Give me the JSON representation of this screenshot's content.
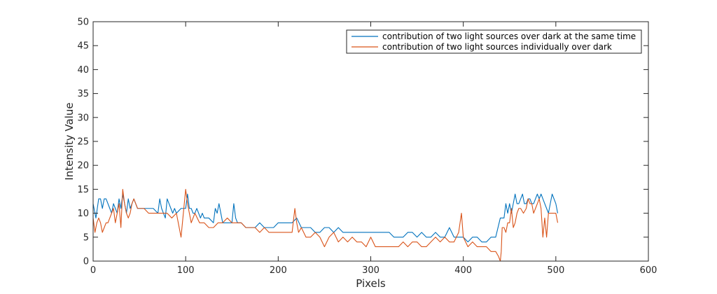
{
  "chart_data": {
    "type": "line",
    "title": "",
    "xlabel": "Pixels",
    "ylabel": "Intensity Value",
    "xlim": [
      0,
      600
    ],
    "ylim": [
      0,
      50
    ],
    "xticks": [
      0,
      100,
      200,
      300,
      400,
      500,
      600
    ],
    "yticks": [
      0,
      5,
      10,
      15,
      20,
      25,
      30,
      35,
      40,
      45,
      50
    ],
    "grid": false,
    "legend_position": "top-right",
    "series": [
      {
        "name": "contribution of two light sources over dark at the same time",
        "color": "#0072BD",
        "x": [
          0,
          3,
          6,
          8,
          10,
          12,
          14,
          16,
          18,
          20,
          22,
          24,
          26,
          28,
          30,
          32,
          34,
          36,
          38,
          40,
          42,
          44,
          46,
          48,
          50,
          55,
          60,
          65,
          70,
          72,
          74,
          76,
          78,
          80,
          82,
          84,
          86,
          88,
          90,
          95,
          100,
          102,
          104,
          106,
          108,
          110,
          112,
          114,
          116,
          118,
          120,
          125,
          130,
          132,
          134,
          136,
          138,
          140,
          145,
          150,
          152,
          154,
          156,
          158,
          160,
          165,
          170,
          175,
          180,
          185,
          190,
          195,
          200,
          205,
          210,
          215,
          220,
          225,
          230,
          235,
          240,
          245,
          250,
          255,
          260,
          265,
          270,
          275,
          280,
          285,
          290,
          295,
          300,
          305,
          310,
          315,
          320,
          325,
          330,
          335,
          340,
          345,
          350,
          355,
          360,
          365,
          370,
          375,
          380,
          385,
          390,
          395,
          400,
          405,
          410,
          415,
          420,
          425,
          430,
          435,
          440,
          442,
          444,
          446,
          448,
          450,
          452,
          454,
          456,
          458,
          460,
          462,
          464,
          466,
          468,
          470,
          472,
          474,
          476,
          478,
          480,
          482,
          484,
          486,
          488,
          490,
          492,
          494,
          496,
          498,
          500,
          502
        ],
        "y": [
          12,
          9,
          13,
          13,
          11,
          13,
          13,
          12,
          11,
          10,
          12,
          11,
          10,
          13,
          11,
          14,
          12,
          10,
          13,
          11,
          12,
          13,
          12,
          11,
          11,
          11,
          11,
          11,
          10,
          13,
          11,
          10,
          9,
          13,
          12,
          11,
          10,
          11,
          10,
          11,
          11,
          14,
          11,
          11,
          10,
          10,
          11,
          10,
          9,
          10,
          9,
          9,
          8,
          11,
          10,
          12,
          10,
          8,
          8,
          8,
          12,
          9,
          8,
          8,
          8,
          7,
          7,
          7,
          8,
          7,
          7,
          7,
          8,
          8,
          8,
          8,
          9,
          7,
          7,
          7,
          6,
          6,
          7,
          7,
          6,
          7,
          6,
          6,
          6,
          6,
          6,
          6,
          6,
          6,
          6,
          6,
          6,
          5,
          5,
          5,
          6,
          6,
          5,
          6,
          5,
          5,
          6,
          5,
          5,
          7,
          5,
          5,
          5,
          4,
          5,
          5,
          4,
          4,
          5,
          5,
          9,
          9,
          9,
          12,
          10,
          12,
          10,
          12,
          14,
          12,
          12,
          13,
          14,
          12,
          12,
          13,
          13,
          12,
          12,
          13,
          14,
          13,
          14,
          13,
          12,
          11,
          10,
          12,
          14,
          13,
          12,
          10
        ],
        "x_note": ""
      },
      {
        "name": "contribution of two light sources individually over dark",
        "color": "#D95319",
        "x": [
          0,
          2,
          4,
          6,
          8,
          10,
          12,
          14,
          16,
          18,
          20,
          22,
          24,
          26,
          28,
          30,
          32,
          34,
          36,
          38,
          40,
          42,
          44,
          46,
          48,
          50,
          55,
          60,
          65,
          70,
          75,
          80,
          85,
          90,
          95,
          100,
          102,
          104,
          106,
          108,
          110,
          115,
          120,
          125,
          130,
          135,
          140,
          145,
          150,
          155,
          160,
          165,
          170,
          175,
          180,
          185,
          190,
          195,
          200,
          205,
          210,
          215,
          218,
          220,
          222,
          225,
          230,
          235,
          240,
          245,
          250,
          255,
          260,
          265,
          270,
          275,
          280,
          285,
          290,
          295,
          300,
          305,
          310,
          315,
          320,
          325,
          330,
          335,
          340,
          345,
          350,
          355,
          360,
          365,
          370,
          375,
          380,
          385,
          390,
          395,
          398,
          400,
          405,
          410,
          415,
          420,
          425,
          430,
          435,
          438,
          440,
          441,
          442,
          444,
          446,
          448,
          450,
          452,
          454,
          456,
          458,
          460,
          462,
          465,
          468,
          470,
          472,
          474,
          476,
          478,
          480,
          482,
          484,
          486,
          488,
          490,
          492,
          494,
          496,
          498,
          500,
          502
        ],
        "y": [
          9,
          6,
          8,
          9,
          8,
          6,
          7,
          8,
          8,
          9,
          10,
          11,
          8,
          10,
          12,
          7,
          15,
          12,
          10,
          9,
          10,
          12,
          13,
          12,
          11,
          11,
          11,
          10,
          10,
          10,
          10,
          10,
          9,
          10,
          5,
          15,
          12,
          10,
          8,
          9,
          10,
          8,
          8,
          7,
          7,
          8,
          8,
          9,
          8,
          8,
          8,
          7,
          7,
          7,
          6,
          7,
          6,
          6,
          6,
          6,
          6,
          6,
          11,
          8,
          6,
          7,
          5,
          5,
          6,
          5,
          3,
          5,
          6,
          4,
          5,
          4,
          5,
          4,
          4,
          3,
          5,
          3,
          3,
          3,
          3,
          3,
          3,
          4,
          3,
          4,
          4,
          3,
          3,
          4,
          5,
          4,
          5,
          4,
          4,
          6,
          10,
          5,
          3,
          4,
          3,
          3,
          3,
          2,
          2,
          1,
          0,
          2,
          7,
          7,
          6,
          8,
          8,
          11,
          7,
          8,
          10,
          11,
          11,
          10,
          11,
          13,
          12,
          12,
          10,
          11,
          12,
          13,
          11,
          5,
          9,
          5,
          10,
          10,
          10,
          10,
          10,
          8
        ]
      }
    ]
  }
}
